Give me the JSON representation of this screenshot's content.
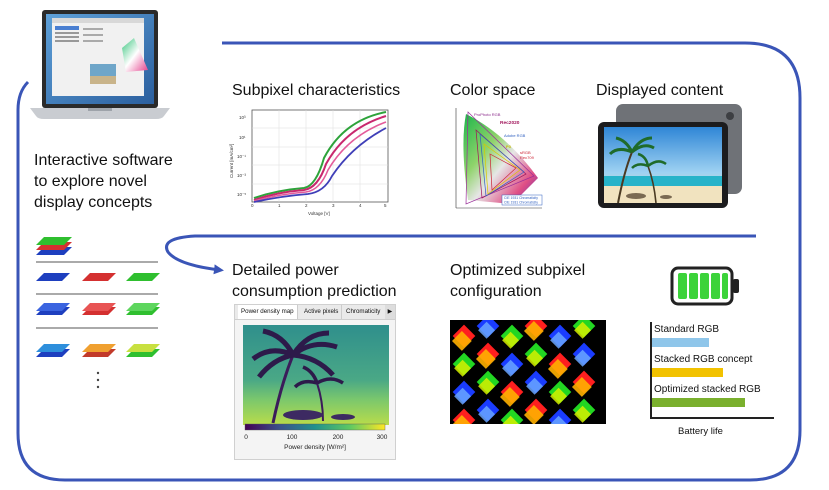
{
  "left_text": "Interactive software to explore novel display concepts",
  "left_text_lines": [
    "Interactive software",
    "to explore novel",
    "display concepts"
  ],
  "headings": {
    "subpixel": "Subpixel characteristics",
    "colorspace": "Color space",
    "content": "Displayed content",
    "power": [
      "Detailed power",
      "consumption prediction"
    ],
    "optimized": [
      "Optimized subpixel",
      "configuration"
    ]
  },
  "iv_plot": {
    "xlabel": "Voltage [V]",
    "ylabel": "Current [mA/cm²]",
    "xticks": [
      "0",
      "1",
      "2",
      "3",
      "4",
      "5"
    ],
    "yticks": [
      "10³",
      "10¹",
      "10⁻¹",
      "10⁻³",
      "10⁻⁵"
    ]
  },
  "cie": {
    "labels": [
      "ProPhoto RGB",
      "Rec2020",
      "Adobe RGB",
      "P3",
      "sRGB",
      "Rec709"
    ],
    "legend": [
      "CIE 1931 Chromaticity",
      "CIE 1931 Chromaticity"
    ]
  },
  "power_panel": {
    "tabs": [
      "Power density map",
      "Active pixels",
      "Chromaticity"
    ],
    "colorbar_ticks": [
      "0",
      "100",
      "200",
      "300"
    ],
    "colorbar_label": "Power density [W/m²]"
  },
  "battery_chart": {
    "xlabel": "Battery life",
    "series": [
      {
        "label": "Standard RGB",
        "value": 0.38,
        "color": "#8fc6ea"
      },
      {
        "label": "Stacked RGB concept",
        "value": 0.47,
        "color": "#f2c200"
      },
      {
        "label": "Optimized stacked RGB",
        "value": 0.62,
        "color": "#7ab02d"
      }
    ]
  },
  "colors": {
    "frame": "#3a55b7",
    "battery_fill": "#3cd33a"
  }
}
